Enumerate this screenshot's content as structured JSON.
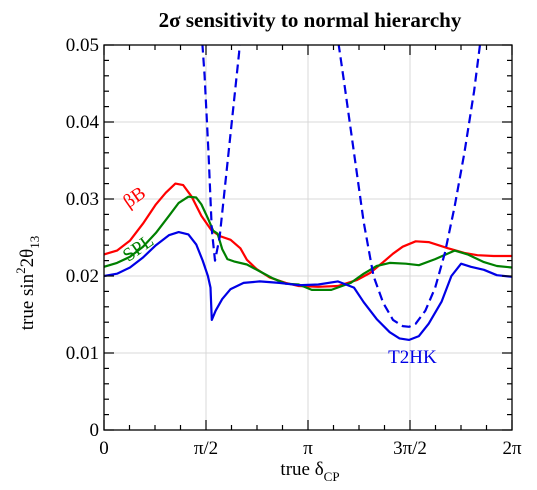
{
  "chart_data": {
    "type": "line",
    "title": "2σ sensitivity to normal hierarchy",
    "xlabel": "true δ",
    "xlabel_sub": "CP",
    "ylabel": "true  sin",
    "ylabel_sup": "2",
    "ylabel_mid": "2θ",
    "ylabel_sub": "13",
    "xlim": [
      0,
      6.2832
    ],
    "ylim": [
      0,
      0.05
    ],
    "grid": true,
    "x_ticks": [
      {
        "value": 0,
        "label": "0"
      },
      {
        "value": 1.5708,
        "label": "π/2"
      },
      {
        "value": 3.1416,
        "label": "π"
      },
      {
        "value": 4.7124,
        "label": "3π/2"
      },
      {
        "value": 6.2832,
        "label": "2π"
      }
    ],
    "y_ticks": [
      {
        "value": 0,
        "label": "0"
      },
      {
        "value": 0.01,
        "label": "0.01"
      },
      {
        "value": 0.02,
        "label": "0.02"
      },
      {
        "value": 0.03,
        "label": "0.03"
      },
      {
        "value": 0.04,
        "label": "0.04"
      },
      {
        "value": 0.05,
        "label": "0.05"
      }
    ],
    "series": [
      {
        "name": "βB",
        "color": "#ff0000",
        "style": "solid",
        "label_pos": {
          "x": 0.52,
          "y": 0.0296
        },
        "label_rotate": -35,
        "points": [
          [
            0,
            0.0228
          ],
          [
            0.2,
            0.0233
          ],
          [
            0.4,
            0.0246
          ],
          [
            0.6,
            0.0268
          ],
          [
            0.8,
            0.0293
          ],
          [
            0.95,
            0.0308
          ],
          [
            1.1,
            0.032
          ],
          [
            1.22,
            0.0318
          ],
          [
            1.35,
            0.0303
          ],
          [
            1.5,
            0.0278
          ],
          [
            1.65,
            0.026
          ],
          [
            1.78,
            0.0252
          ],
          [
            1.95,
            0.0247
          ],
          [
            2.1,
            0.0236
          ],
          [
            2.2,
            0.0221
          ],
          [
            2.35,
            0.0209
          ],
          [
            2.55,
            0.0198
          ],
          [
            2.8,
            0.0191
          ],
          [
            3.0,
            0.0187
          ],
          [
            3.3,
            0.0186
          ],
          [
            3.6,
            0.0187
          ],
          [
            3.9,
            0.0195
          ],
          [
            4.1,
            0.0204
          ],
          [
            4.3,
            0.0218
          ],
          [
            4.45,
            0.0229
          ],
          [
            4.6,
            0.0238
          ],
          [
            4.8,
            0.0245
          ],
          [
            5.0,
            0.0244
          ],
          [
            5.3,
            0.0236
          ],
          [
            5.55,
            0.023
          ],
          [
            5.75,
            0.0227
          ],
          [
            6.0,
            0.0226
          ],
          [
            6.2832,
            0.0226
          ]
        ]
      },
      {
        "name": "SPL",
        "color": "#008000",
        "style": "solid",
        "label_pos": {
          "x": 0.58,
          "y": 0.023
        },
        "label_rotate": -35,
        "points": [
          [
            0,
            0.0212
          ],
          [
            0.2,
            0.0217
          ],
          [
            0.4,
            0.0225
          ],
          [
            0.6,
            0.0238
          ],
          [
            0.8,
            0.0256
          ],
          [
            1.0,
            0.0278
          ],
          [
            1.15,
            0.0295
          ],
          [
            1.3,
            0.0303
          ],
          [
            1.42,
            0.0302
          ],
          [
            1.5,
            0.0293
          ],
          [
            1.6,
            0.0275
          ],
          [
            1.68,
            0.0259
          ],
          [
            1.75,
            0.0255
          ],
          [
            1.82,
            0.0235
          ],
          [
            1.9,
            0.0222
          ],
          [
            2.0,
            0.0219
          ],
          [
            2.2,
            0.0215
          ],
          [
            2.4,
            0.0206
          ],
          [
            2.6,
            0.0197
          ],
          [
            2.8,
            0.019
          ],
          [
            3.0,
            0.0189
          ],
          [
            3.2,
            0.0182
          ],
          [
            3.5,
            0.0182
          ],
          [
            3.8,
            0.0191
          ],
          [
            4.0,
            0.0203
          ],
          [
            4.2,
            0.0213
          ],
          [
            4.4,
            0.0217
          ],
          [
            4.65,
            0.0216
          ],
          [
            4.85,
            0.0214
          ],
          [
            5.1,
            0.0222
          ],
          [
            5.4,
            0.0233
          ],
          [
            5.6,
            0.0228
          ],
          [
            5.85,
            0.0218
          ],
          [
            6.05,
            0.0213
          ],
          [
            6.2832,
            0.0211
          ]
        ]
      },
      {
        "name": "T2HK",
        "color": "#0000e6",
        "style": "solid",
        "label_pos": {
          "x": 4.75,
          "y": 0.0087
        },
        "label_rotate": 0,
        "points": [
          [
            0,
            0.02
          ],
          [
            0.2,
            0.0203
          ],
          [
            0.4,
            0.0211
          ],
          [
            0.6,
            0.0224
          ],
          [
            0.8,
            0.024
          ],
          [
            1.0,
            0.0253
          ],
          [
            1.15,
            0.0257
          ],
          [
            1.3,
            0.0254
          ],
          [
            1.42,
            0.0241
          ],
          [
            1.52,
            0.022
          ],
          [
            1.6,
            0.02
          ],
          [
            1.64,
            0.0185
          ],
          [
            1.66,
            0.0143
          ],
          [
            1.72,
            0.0155
          ],
          [
            1.82,
            0.017
          ],
          [
            1.95,
            0.0183
          ],
          [
            2.15,
            0.0191
          ],
          [
            2.4,
            0.0193
          ],
          [
            2.7,
            0.0191
          ],
          [
            3.0,
            0.0188
          ],
          [
            3.3,
            0.0189
          ],
          [
            3.6,
            0.0193
          ],
          [
            3.85,
            0.0185
          ],
          [
            4.0,
            0.0166
          ],
          [
            4.2,
            0.0144
          ],
          [
            4.4,
            0.0127
          ],
          [
            4.55,
            0.0119
          ],
          [
            4.7,
            0.0117
          ],
          [
            4.85,
            0.0122
          ],
          [
            5.0,
            0.0138
          ],
          [
            5.2,
            0.0167
          ],
          [
            5.35,
            0.02
          ],
          [
            5.5,
            0.0216
          ],
          [
            5.65,
            0.0212
          ],
          [
            5.85,
            0.0208
          ],
          [
            6.05,
            0.0201
          ],
          [
            6.2832,
            0.0199
          ]
        ]
      },
      {
        "name": "",
        "color": "#0000e6",
        "style": "dashed",
        "points": [
          [
            1.5,
            0.052
          ],
          [
            1.55,
            0.046
          ],
          [
            1.61,
            0.036
          ],
          [
            1.66,
            0.026
          ],
          [
            1.71,
            0.022
          ],
          [
            1.78,
            0.025
          ],
          [
            1.88,
            0.033
          ],
          [
            1.98,
            0.041
          ],
          [
            2.08,
            0.049
          ],
          [
            2.1,
            0.052
          ]
        ]
      },
      {
        "name": "",
        "color": "#0000e6",
        "style": "dashed",
        "points": [
          [
            3.58,
            0.052
          ],
          [
            3.7,
            0.045
          ],
          [
            3.85,
            0.036
          ],
          [
            4.0,
            0.027
          ],
          [
            4.15,
            0.02
          ],
          [
            4.3,
            0.0165
          ],
          [
            4.45,
            0.0143
          ],
          [
            4.6,
            0.0135
          ],
          [
            4.7,
            0.0134
          ],
          [
            4.8,
            0.0138
          ],
          [
            4.95,
            0.0155
          ],
          [
            5.1,
            0.0185
          ],
          [
            5.25,
            0.023
          ],
          [
            5.4,
            0.029
          ],
          [
            5.55,
            0.036
          ],
          [
            5.7,
            0.044
          ],
          [
            5.82,
            0.052
          ]
        ]
      }
    ]
  }
}
